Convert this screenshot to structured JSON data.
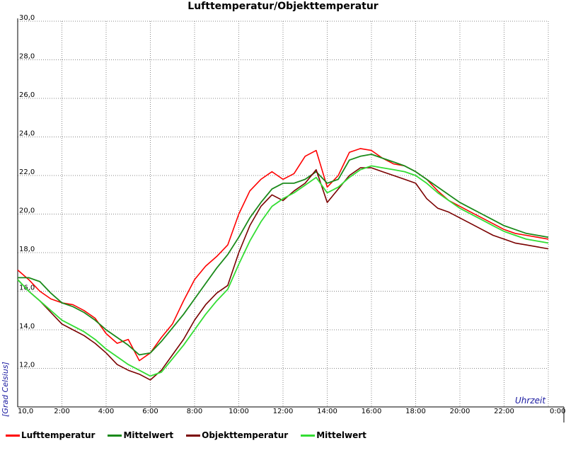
{
  "chart_data": {
    "type": "line",
    "title": "Lufttemperatur/Objekttemperatur",
    "xlabel": "Uhrzeit",
    "ylabel": "[Grad Celsius]",
    "xlim": [
      0,
      24
    ],
    "ylim": [
      10,
      30
    ],
    "grid": true,
    "legend_position": "bottom",
    "x_tick_labels": [
      "10,0",
      "2:00",
      "4:00",
      "6:00",
      "8:00",
      "10:00",
      "12:00",
      "14:00",
      "16:00",
      "18:00",
      "20:00",
      "22:00",
      "0:00"
    ],
    "y_tick_labels": [
      "12,0",
      "14,0",
      "16,0",
      "18,0",
      "20,0",
      "22,0",
      "24,0",
      "26,0",
      "28,0",
      "30,0"
    ],
    "series": [
      {
        "name": "Lufttemperatur",
        "color": "#ff0000",
        "points": [
          [
            0,
            17.1
          ],
          [
            0.5,
            16.6
          ],
          [
            1,
            16.0
          ],
          [
            1.5,
            15.6
          ],
          [
            2,
            15.4
          ],
          [
            2.5,
            15.3
          ],
          [
            3,
            15.0
          ],
          [
            3.5,
            14.6
          ],
          [
            4,
            13.8
          ],
          [
            4.5,
            13.3
          ],
          [
            5,
            13.5
          ],
          [
            5.5,
            12.4
          ],
          [
            6,
            12.8
          ],
          [
            6.5,
            13.6
          ],
          [
            7,
            14.3
          ],
          [
            7.5,
            15.5
          ],
          [
            8,
            16.6
          ],
          [
            8.5,
            17.3
          ],
          [
            9,
            17.8
          ],
          [
            9.5,
            18.4
          ],
          [
            10,
            20.0
          ],
          [
            10.5,
            21.2
          ],
          [
            11,
            21.8
          ],
          [
            11.5,
            22.2
          ],
          [
            12,
            21.8
          ],
          [
            12.5,
            22.1
          ],
          [
            13,
            23.0
          ],
          [
            13.5,
            23.3
          ],
          [
            14,
            21.4
          ],
          [
            14.5,
            22.0
          ],
          [
            15,
            23.2
          ],
          [
            15.5,
            23.4
          ],
          [
            16,
            23.3
          ],
          [
            16.5,
            22.9
          ],
          [
            17,
            22.6
          ],
          [
            17.5,
            22.5
          ],
          [
            18,
            22.2
          ],
          [
            18.5,
            21.8
          ],
          [
            19,
            21.2
          ],
          [
            19.5,
            20.7
          ],
          [
            20,
            20.4
          ],
          [
            20.5,
            20.1
          ],
          [
            21,
            19.8
          ],
          [
            21.5,
            19.5
          ],
          [
            22,
            19.2
          ],
          [
            22.5,
            19.0
          ],
          [
            23,
            18.9
          ],
          [
            23.5,
            18.8
          ],
          [
            24,
            18.7
          ]
        ]
      },
      {
        "name": "Mittelwert",
        "color": "#1a8a1a",
        "points": [
          [
            0,
            16.7
          ],
          [
            0.5,
            16.7
          ],
          [
            1,
            16.5
          ],
          [
            1.5,
            15.9
          ],
          [
            2,
            15.4
          ],
          [
            2.5,
            15.2
          ],
          [
            3,
            14.9
          ],
          [
            3.5,
            14.5
          ],
          [
            4,
            14.0
          ],
          [
            4.5,
            13.6
          ],
          [
            5,
            13.2
          ],
          [
            5.5,
            12.7
          ],
          [
            6,
            12.8
          ],
          [
            6.5,
            13.4
          ],
          [
            7,
            14.1
          ],
          [
            7.5,
            14.8
          ],
          [
            8,
            15.6
          ],
          [
            8.5,
            16.4
          ],
          [
            9,
            17.2
          ],
          [
            9.5,
            17.9
          ],
          [
            10,
            18.8
          ],
          [
            10.5,
            19.8
          ],
          [
            11,
            20.6
          ],
          [
            11.5,
            21.3
          ],
          [
            12,
            21.6
          ],
          [
            12.5,
            21.6
          ],
          [
            13,
            21.8
          ],
          [
            13.5,
            22.2
          ],
          [
            14,
            21.6
          ],
          [
            14.5,
            21.8
          ],
          [
            15,
            22.8
          ],
          [
            15.5,
            23.0
          ],
          [
            16,
            23.1
          ],
          [
            16.5,
            22.9
          ],
          [
            17,
            22.7
          ],
          [
            17.5,
            22.5
          ],
          [
            18,
            22.2
          ],
          [
            18.5,
            21.8
          ],
          [
            19,
            21.4
          ],
          [
            19.5,
            21.0
          ],
          [
            20,
            20.6
          ],
          [
            20.5,
            20.3
          ],
          [
            21,
            20.0
          ],
          [
            21.5,
            19.7
          ],
          [
            22,
            19.4
          ],
          [
            22.5,
            19.2
          ],
          [
            23,
            19.0
          ],
          [
            23.5,
            18.9
          ],
          [
            24,
            18.8
          ]
        ]
      },
      {
        "name": "Objekttemperatur",
        "color": "#7a0000",
        "points": [
          [
            0,
            16.6
          ],
          [
            0.5,
            16.0
          ],
          [
            1,
            15.5
          ],
          [
            1.5,
            14.9
          ],
          [
            2,
            14.3
          ],
          [
            2.5,
            14.0
          ],
          [
            3,
            13.7
          ],
          [
            3.5,
            13.3
          ],
          [
            4,
            12.8
          ],
          [
            4.5,
            12.2
          ],
          [
            5,
            11.9
          ],
          [
            5.5,
            11.7
          ],
          [
            6,
            11.4
          ],
          [
            6.5,
            11.9
          ],
          [
            7,
            12.7
          ],
          [
            7.5,
            13.5
          ],
          [
            8,
            14.5
          ],
          [
            8.5,
            15.3
          ],
          [
            9,
            15.9
          ],
          [
            9.5,
            16.3
          ],
          [
            10,
            18.0
          ],
          [
            10.5,
            19.4
          ],
          [
            11,
            20.4
          ],
          [
            11.5,
            21.0
          ],
          [
            12,
            20.7
          ],
          [
            12.5,
            21.2
          ],
          [
            13,
            21.6
          ],
          [
            13.5,
            22.3
          ],
          [
            14,
            20.6
          ],
          [
            14.5,
            21.3
          ],
          [
            15,
            22.0
          ],
          [
            15.5,
            22.4
          ],
          [
            16,
            22.4
          ],
          [
            16.5,
            22.2
          ],
          [
            17,
            22.0
          ],
          [
            17.5,
            21.8
          ],
          [
            18,
            21.6
          ],
          [
            18.5,
            20.8
          ],
          [
            19,
            20.3
          ],
          [
            19.5,
            20.1
          ],
          [
            20,
            19.8
          ],
          [
            20.5,
            19.5
          ],
          [
            21,
            19.2
          ],
          [
            21.5,
            18.9
          ],
          [
            22,
            18.7
          ],
          [
            22.5,
            18.5
          ],
          [
            23,
            18.4
          ],
          [
            23.5,
            18.3
          ],
          [
            24,
            18.2
          ]
        ]
      },
      {
        "name": "Mittelwert",
        "color": "#33dd33",
        "points": [
          [
            0,
            16.6
          ],
          [
            0.5,
            16.0
          ],
          [
            1,
            15.5
          ],
          [
            1.5,
            15.0
          ],
          [
            2,
            14.5
          ],
          [
            2.5,
            14.2
          ],
          [
            3,
            13.9
          ],
          [
            3.5,
            13.5
          ],
          [
            4,
            13.0
          ],
          [
            4.5,
            12.6
          ],
          [
            5,
            12.2
          ],
          [
            5.5,
            11.9
          ],
          [
            6,
            11.6
          ],
          [
            6.5,
            11.8
          ],
          [
            7,
            12.5
          ],
          [
            7.5,
            13.2
          ],
          [
            8,
            14.0
          ],
          [
            8.5,
            14.8
          ],
          [
            9,
            15.5
          ],
          [
            9.5,
            16.1
          ],
          [
            10,
            17.4
          ],
          [
            10.5,
            18.6
          ],
          [
            11,
            19.6
          ],
          [
            11.5,
            20.4
          ],
          [
            12,
            20.8
          ],
          [
            12.5,
            21.1
          ],
          [
            13,
            21.5
          ],
          [
            13.5,
            21.9
          ],
          [
            14,
            21.1
          ],
          [
            14.5,
            21.4
          ],
          [
            15,
            21.9
          ],
          [
            15.5,
            22.3
          ],
          [
            16,
            22.5
          ],
          [
            16.5,
            22.4
          ],
          [
            17,
            22.3
          ],
          [
            17.5,
            22.2
          ],
          [
            18,
            22.0
          ],
          [
            18.5,
            21.6
          ],
          [
            19,
            21.1
          ],
          [
            19.5,
            20.7
          ],
          [
            20,
            20.3
          ],
          [
            20.5,
            20.0
          ],
          [
            21,
            19.7
          ],
          [
            21.5,
            19.4
          ],
          [
            22,
            19.1
          ],
          [
            22.5,
            18.9
          ],
          [
            23,
            18.7
          ],
          [
            23.5,
            18.6
          ],
          [
            24,
            18.5
          ]
        ]
      }
    ]
  }
}
